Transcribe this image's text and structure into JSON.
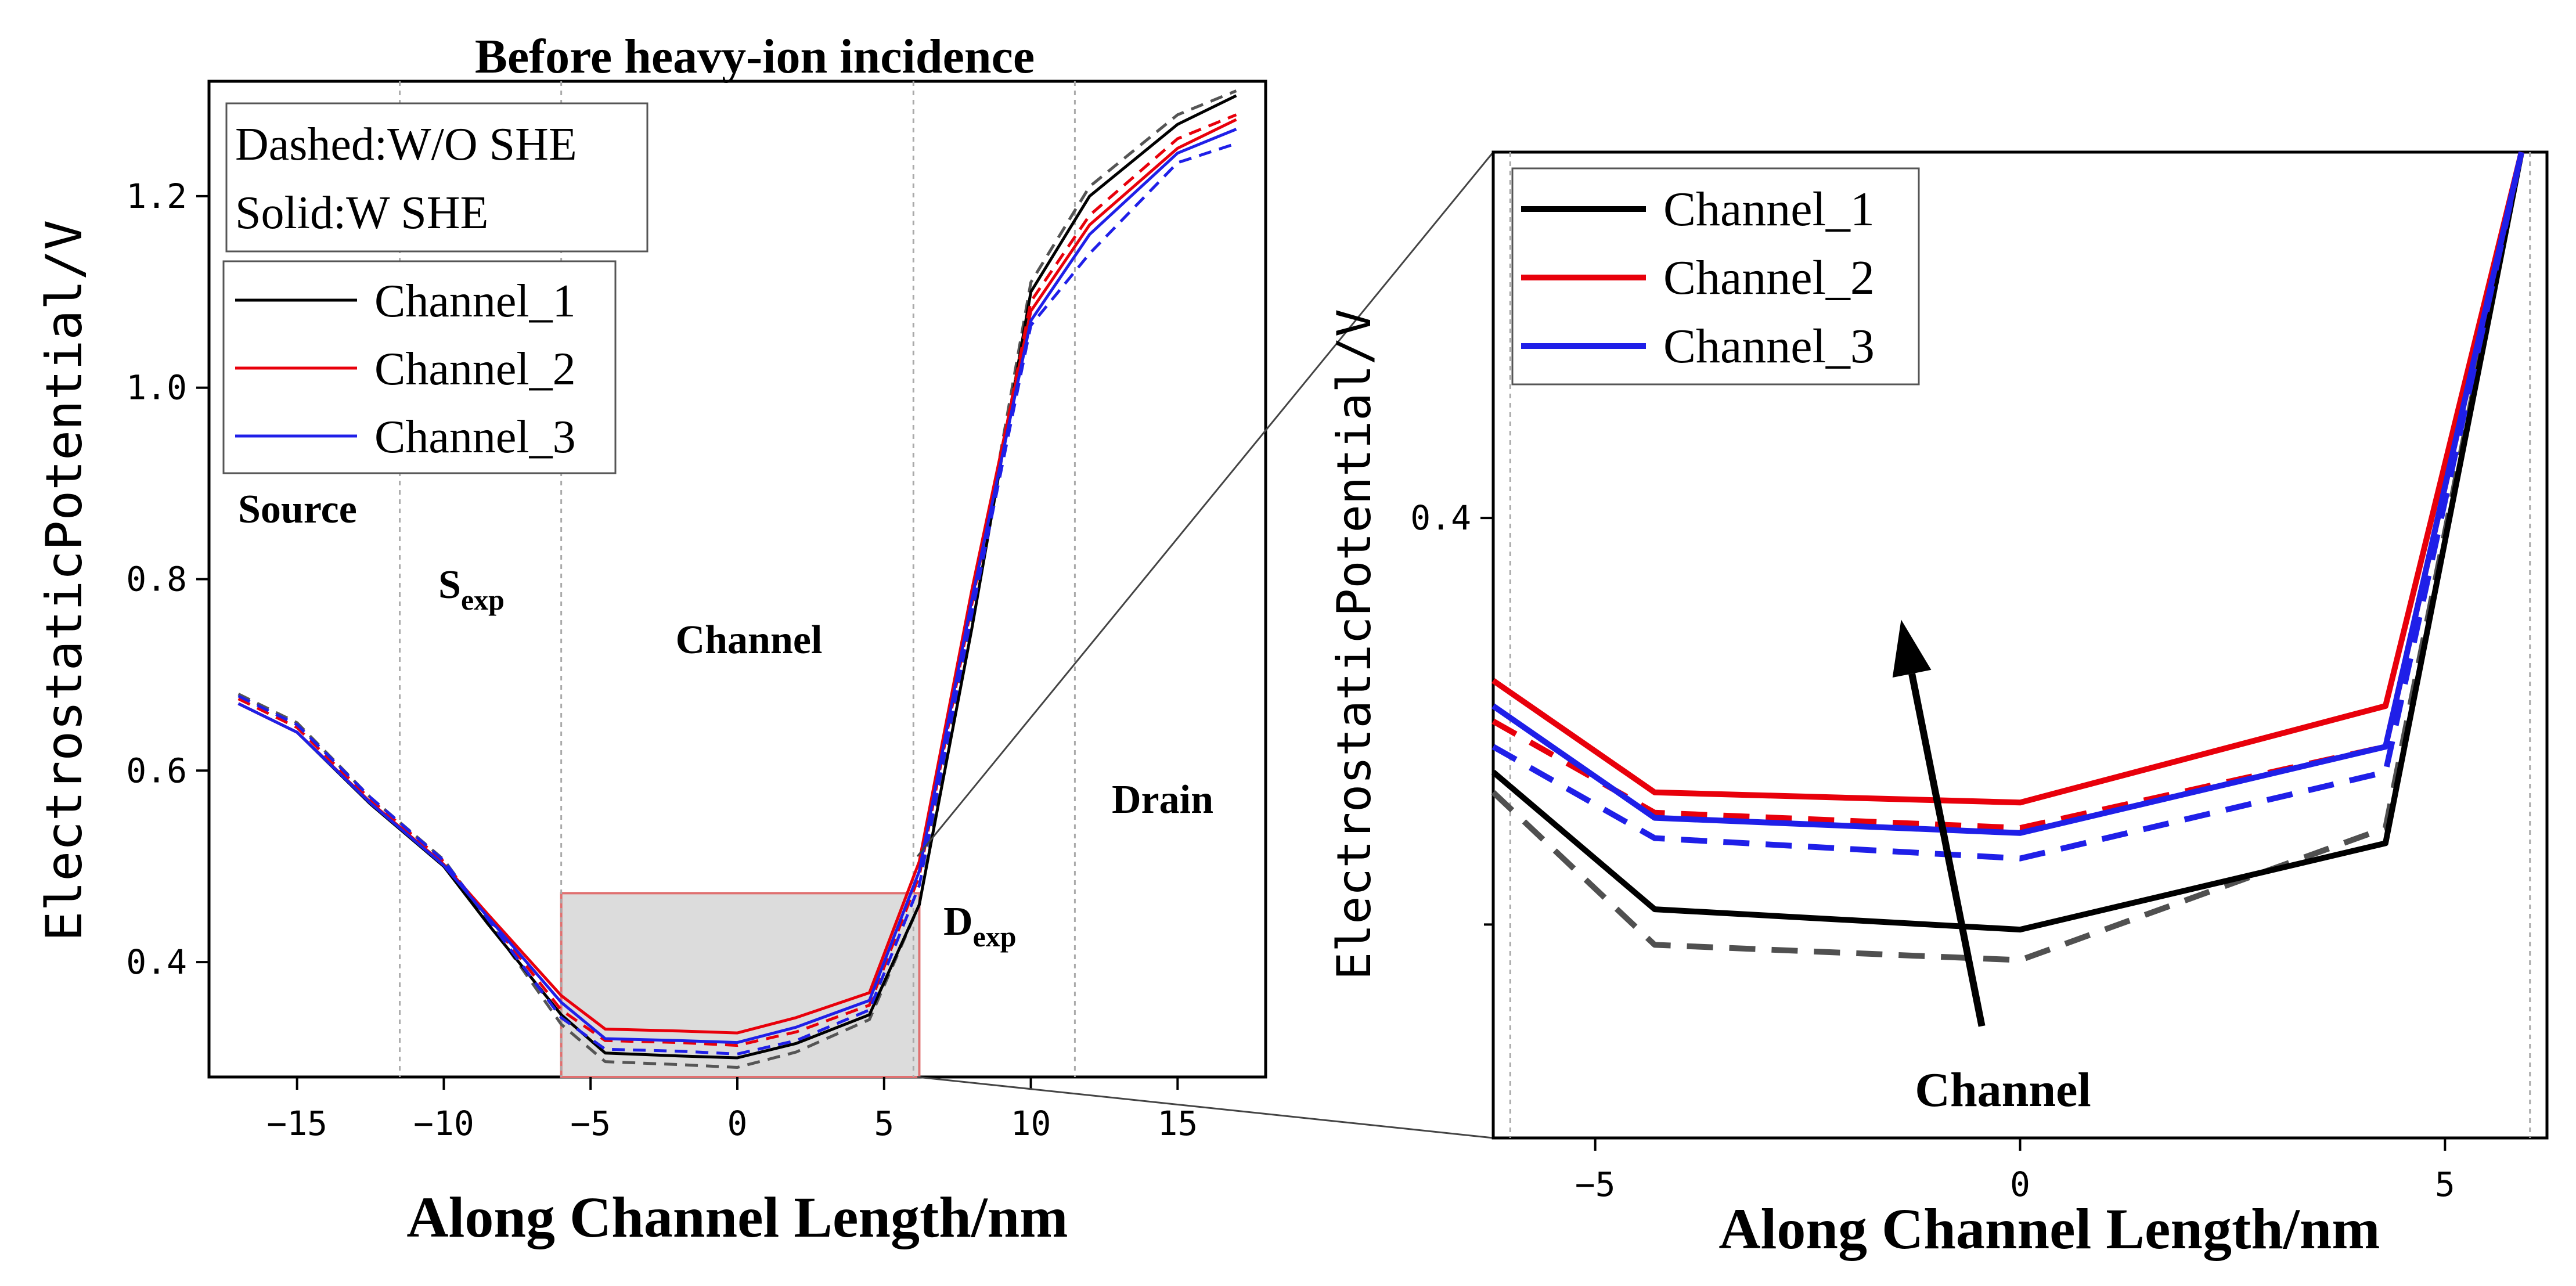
{
  "chart_data": [
    {
      "type": "line",
      "title": "Before heavy-ion incidence",
      "xlabel": "Along Channel Length/nm",
      "ylabel": "ElectrostaticPotential/V",
      "xlim": [
        -18,
        18
      ],
      "ylim": [
        0.28,
        1.32
      ],
      "xticks": [
        -15,
        -10,
        -5,
        0,
        5,
        10,
        15
      ],
      "xtick_labels": [
        "−15",
        "−10",
        "−5",
        "0",
        "5",
        "10",
        "15"
      ],
      "yticks": [
        0.4,
        0.6,
        0.8,
        1.0,
        1.2
      ],
      "ytick_labels": [
        "0.4",
        "0.6",
        "0.8",
        "1.0",
        "1.2"
      ],
      "grid": false,
      "region_boundaries": [
        -11.5,
        -6,
        6,
        11.5
      ],
      "region_labels": {
        "source": "Source",
        "sexp_main": "S",
        "sexp_sub": "exp",
        "channel": "Channel",
        "dexp_main": "D",
        "dexp_sub": "exp",
        "drain": "Drain"
      },
      "style_legend": {
        "dashed": "Dashed:W/O SHE",
        "solid": "Solid:W SHE"
      },
      "legend_placement": "top-left",
      "zoom_box": {
        "x": [
          -6,
          6.2
        ],
        "y": [
          0.28,
          0.472
        ]
      },
      "x": [
        -17,
        -15,
        -12.5,
        -10,
        -8.5,
        -6,
        -4.5,
        -2,
        0,
        2,
        4.5,
        6.2,
        8,
        10,
        12,
        15,
        17
      ],
      "series": [
        {
          "name": "Channel_1",
          "color": "#000000",
          "dashed_color": "#555555",
          "solid": [
            0.67,
            0.64,
            0.565,
            0.5,
            0.44,
            0.345,
            0.305,
            0.302,
            0.3,
            0.315,
            0.345,
            0.46,
            0.75,
            1.1,
            1.2,
            1.275,
            1.305
          ],
          "dashed": [
            0.68,
            0.65,
            0.572,
            0.507,
            0.444,
            0.335,
            0.296,
            0.293,
            0.29,
            0.306,
            0.34,
            0.46,
            0.765,
            1.11,
            1.21,
            1.285,
            1.31
          ]
        },
        {
          "name": "Channel_2",
          "color": "#e8000b",
          "dashed_color": "#e8000b",
          "solid": [
            0.67,
            0.64,
            0.567,
            0.502,
            0.45,
            0.365,
            0.33,
            0.328,
            0.326,
            0.342,
            0.368,
            0.505,
            0.79,
            1.08,
            1.17,
            1.25,
            1.28
          ],
          "dashed": [
            0.675,
            0.645,
            0.57,
            0.505,
            0.447,
            0.35,
            0.318,
            0.316,
            0.313,
            0.327,
            0.355,
            0.49,
            0.775,
            1.09,
            1.18,
            1.26,
            1.285
          ]
        },
        {
          "name": "Channel_3",
          "color": "#1f1fe8",
          "dashed_color": "#1f1fe8",
          "solid": [
            0.67,
            0.64,
            0.566,
            0.501,
            0.447,
            0.358,
            0.32,
            0.318,
            0.316,
            0.332,
            0.36,
            0.495,
            0.78,
            1.07,
            1.16,
            1.245,
            1.27
          ],
          "dashed": [
            0.678,
            0.648,
            0.572,
            0.506,
            0.445,
            0.342,
            0.309,
            0.307,
            0.304,
            0.318,
            0.35,
            0.48,
            0.765,
            1.065,
            1.14,
            1.235,
            1.255
          ]
        }
      ]
    },
    {
      "type": "line",
      "title": "",
      "xlabel": "Along Channel Length/nm",
      "ylabel": "ElectrostaticPotential/V",
      "xlim": [
        -6.2,
        6.2
      ],
      "ylim": [
        0.278,
        0.472
      ],
      "xticks": [
        -5,
        0,
        5
      ],
      "xtick_labels": [
        "−5",
        "0",
        "5"
      ],
      "yticks": [
        0.4
      ],
      "ytick_labels": [
        "0.4"
      ],
      "minor_yticks": [
        0.32
      ],
      "grid": false,
      "region_boundaries": [
        -6,
        6
      ],
      "annotation": "Channel",
      "legend_placement": "top-left",
      "arrow": {
        "from": [
          -0.45,
          0.3
        ],
        "to": [
          -1.4,
          0.38
        ]
      },
      "x": [
        -6.2,
        -4.3,
        0,
        4.3,
        5.9
      ],
      "series": [
        {
          "name": "Channel_1",
          "color": "#000000",
          "dashed_color": "#505050",
          "solid": [
            0.35,
            0.323,
            0.319,
            0.336,
            0.472
          ],
          "dashed": [
            0.346,
            0.316,
            0.313,
            0.339,
            0.472
          ]
        },
        {
          "name": "Channel_2",
          "color": "#e8000b",
          "dashed_color": "#e8000b",
          "solid": [
            0.368,
            0.346,
            0.344,
            0.363,
            0.472
          ],
          "dashed": [
            0.36,
            0.342,
            0.339,
            0.355,
            0.472
          ]
        },
        {
          "name": "Channel_3",
          "color": "#1f1fe8",
          "dashed_color": "#1f1fe8",
          "solid": [
            0.363,
            0.341,
            0.338,
            0.355,
            0.472
          ],
          "dashed": [
            0.355,
            0.337,
            0.333,
            0.35,
            0.472
          ]
        }
      ]
    }
  ]
}
